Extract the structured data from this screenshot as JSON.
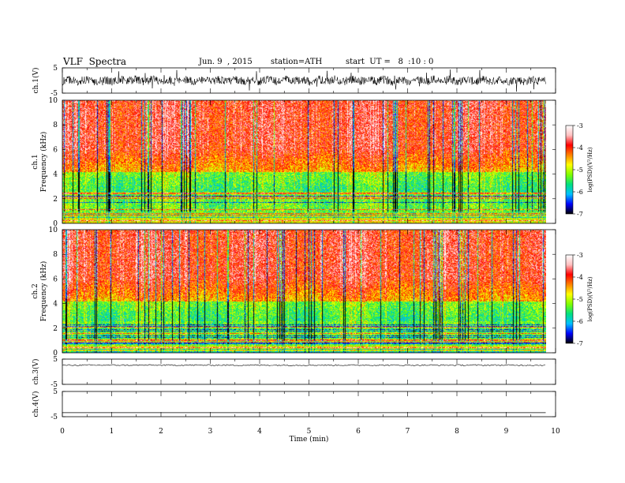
{
  "header": {
    "title": "VLF  Spectra",
    "date": "Jun. 9  , 2015",
    "station": "station=ATH",
    "start_ut": "start  UT =   8  :10 : 0"
  },
  "chart_data": {
    "type": "heatmap",
    "title": "VLF  Spectra",
    "xlabel": "Time  (min)",
    "xlim": [
      0,
      10
    ],
    "x_ticks": [
      "0",
      "1",
      "2",
      "3",
      "4",
      "5",
      "6",
      "7",
      "8",
      "9",
      "10"
    ],
    "data_end_min": 9.8,
    "panels": [
      {
        "id": "ch1-waveform",
        "kind": "line",
        "ylabel": "ch.1(V)",
        "ylim": [
          -5,
          5
        ],
        "y_ticks": [
          "-5",
          "5"
        ],
        "color": "#000000"
      },
      {
        "id": "ch1-spectrogram",
        "kind": "heatmap",
        "ylabel": "Frequency  (kHz)",
        "channel_label": "ch.1",
        "ylim": [
          0,
          10
        ],
        "y_ticks": [
          "0",
          "2",
          "4",
          "6",
          "8",
          "10"
        ]
      },
      {
        "id": "ch2-spectrogram",
        "kind": "heatmap",
        "ylabel": "Frequency  (kHz)",
        "channel_label": "ch.2",
        "ylim": [
          0,
          10
        ],
        "y_ticks": [
          "0",
          "2",
          "4",
          "6",
          "8",
          "10"
        ]
      },
      {
        "id": "ch3-waveform",
        "kind": "line",
        "ylabel": "ch.3(V)",
        "ylim": [
          -5,
          5
        ],
        "y_ticks": [
          "-5",
          "5"
        ],
        "color": "#000000"
      },
      {
        "id": "ch4-waveform",
        "kind": "line",
        "ylabel": "ch.4(V)",
        "ylim": [
          -5,
          5
        ],
        "y_ticks": [
          "-5",
          "5"
        ],
        "color": "#000000"
      }
    ],
    "colorbar": {
      "label": "log(PSD)(V²/Hz)",
      "range": [
        -7,
        -3
      ],
      "ticks": [
        "-3",
        "-4",
        "-5",
        "-6",
        "-7"
      ],
      "colors": [
        "#000000",
        "#0000ff",
        "#00c0ff",
        "#00e080",
        "#80ff00",
        "#ffff00",
        "#ff8000",
        "#ff0000",
        "#ffc0c0",
        "#ffffff"
      ]
    }
  }
}
